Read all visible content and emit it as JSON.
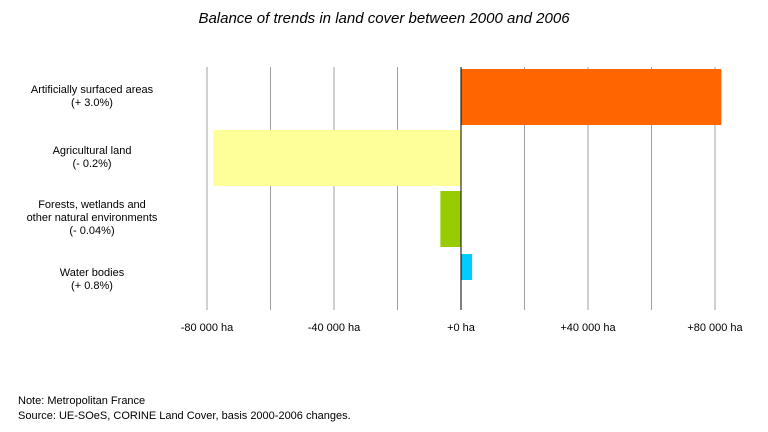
{
  "chart_data": {
    "type": "bar",
    "orientation": "horizontal",
    "title": "Balance of trends in land cover between 2000 and 2006",
    "categories": [
      {
        "lines": [
          "Artificially surfaced areas",
          "(+ 3.0%)"
        ],
        "value": 82000,
        "color": "#ff6600"
      },
      {
        "lines": [
          "Agricultural land",
          "(- 0.2%)"
        ],
        "value": -78000,
        "color": "#ffff99"
      },
      {
        "lines": [
          "Forests, wetlands and",
          "other natural environments",
          "(- 0.04%)"
        ],
        "value": -6500,
        "color": "#99cc00"
      },
      {
        "lines": [
          "Water bodies",
          "(+ 0.8%)"
        ],
        "value": 3500,
        "color": "#00ccff"
      }
    ],
    "xlim": [
      -80000,
      80000
    ],
    "xticks": [
      {
        "value": -80000,
        "label": "-80 000 ha"
      },
      {
        "value": -40000,
        "label": "-40 000 ha"
      },
      {
        "value": 0,
        "label": "+0 ha"
      },
      {
        "value": 40000,
        "label": "+40 000 ha"
      },
      {
        "value": 80000,
        "label": "+80 000 ha"
      }
    ],
    "minor_gridlines": [
      -60000,
      -20000,
      20000,
      60000
    ],
    "grid": true,
    "grid_color": "#a0a0a0"
  },
  "footer": {
    "note": "Note: Metropolitan France",
    "source": "Source: UE-SOeS, CORINE Land Cover, basis 2000-2006 changes."
  }
}
